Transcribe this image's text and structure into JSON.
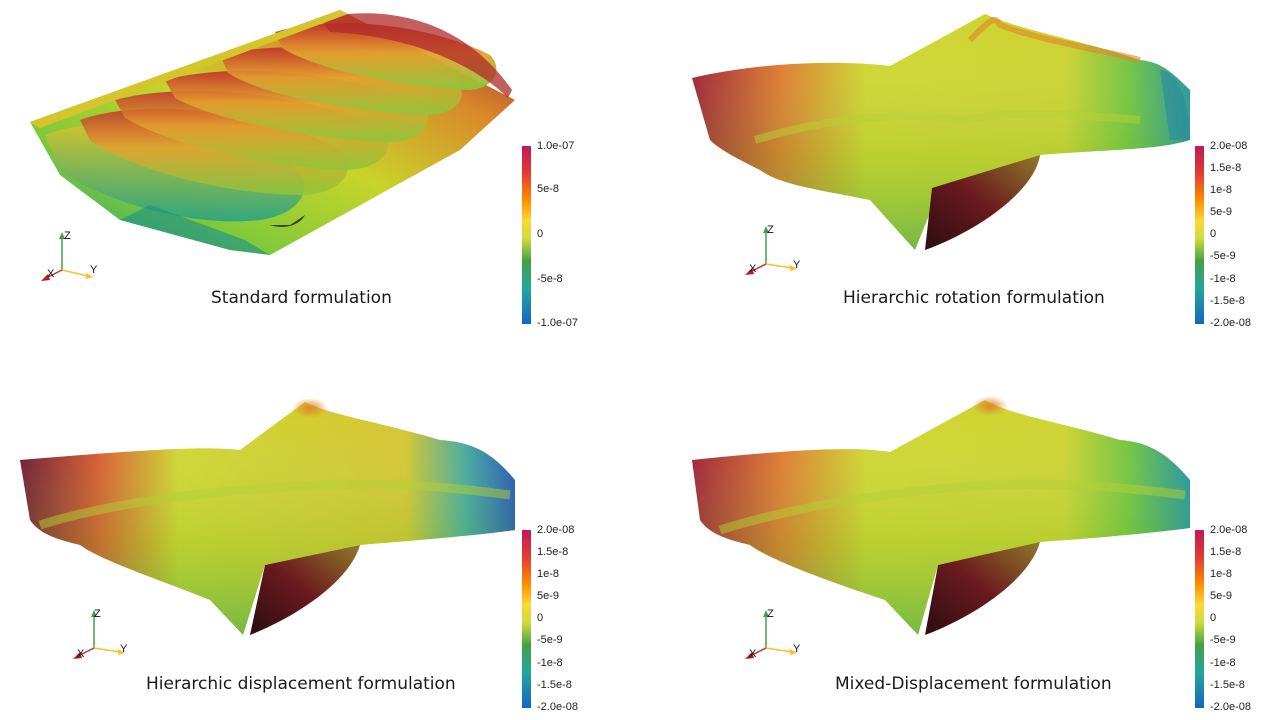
{
  "panels": [
    {
      "caption": "Standard formulation",
      "colorbar_labels": [
        "1.0e-07",
        "5e-8",
        "0",
        "-5e-8",
        "-1.0e-07"
      ],
      "axes": {
        "z": "Z",
        "x": "X",
        "y": "Y"
      }
    },
    {
      "caption": "Hierarchic rotation formulation",
      "colorbar_labels": [
        "2.0e-08",
        "1.5e-8",
        "1e-8",
        "5e-9",
        "0",
        "-5e-9",
        "-1e-8",
        "-1.5e-8",
        "-2.0e-08"
      ],
      "axes": {
        "z": "Z",
        "x": "X",
        "y": "Y"
      }
    },
    {
      "caption": "Hierarchic displacement formulation",
      "colorbar_labels": [
        "2.0e-08",
        "1.5e-8",
        "1e-8",
        "5e-9",
        "0",
        "-5e-9",
        "-1e-8",
        "-1.5e-8",
        "-2.0e-08"
      ],
      "axes": {
        "z": "Z",
        "x": "X",
        "y": "Y"
      }
    },
    {
      "caption": "Mixed-Displacement  formulation",
      "colorbar_labels": [
        "2.0e-08",
        "1.5e-8",
        "1e-8",
        "5e-9",
        "0",
        "-5e-9",
        "-1e-8",
        "-1.5e-8",
        "-2.0e-08"
      ],
      "axes": {
        "z": "Z",
        "x": "X",
        "y": "Y"
      }
    }
  ],
  "colors": {
    "colormap": [
      "#c2185b",
      "#e53935",
      "#fb8c00",
      "#fdd835",
      "#cddc39",
      "#43a047",
      "#26a69a",
      "#1e88e5",
      "#1565c0"
    ],
    "surface_dark": "#3a1a10",
    "axis_x": "#d32f2f",
    "axis_y": "#fbc02d",
    "axis_z": "#43a047"
  }
}
